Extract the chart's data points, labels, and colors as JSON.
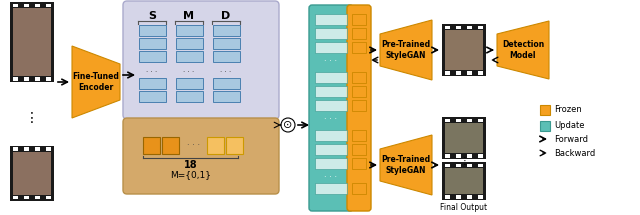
{
  "bg_color": "#ffffff",
  "film_strip_color": "#1a1a1a",
  "face_color": "#8B7B6B",
  "orange_color": "#F5A020",
  "teal_color": "#5BBFB5",
  "lavender_color": "#D5D5E8",
  "lavender_border": "#AAAACC",
  "tan_color": "#D4A96A",
  "tan_border": "#B8904A",
  "blue_block_color": "#A8C8E0",
  "blue_block_border": "#4A80B0",
  "text_fine_tuned": "Fine-Tuned\nEncoder",
  "text_stylegan_top": "Pre-Trained\nStyleGAN",
  "text_stylegan_bot": "Pre-Trained\nStyleGAN",
  "text_detection": "Detection\nModel",
  "text_18": "18",
  "text_mask": "M={0,1}",
  "text_final": "Final Output",
  "text_frozen": "Frozen",
  "text_update": "Update",
  "text_forward": "Forward",
  "text_backward": "Backward",
  "label_s": "S",
  "label_m": "M",
  "label_d": "D"
}
